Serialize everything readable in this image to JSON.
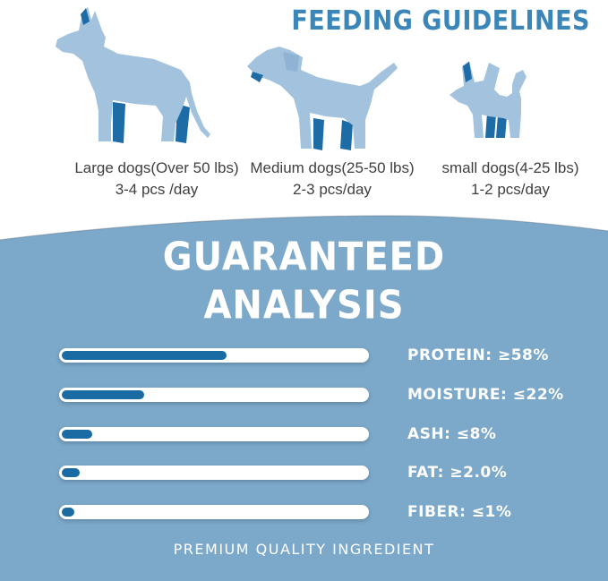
{
  "header": {
    "title": "FEEDING GUIDELINES"
  },
  "feeding_guide": {
    "dogs": [
      {
        "icon": "large-dog-icon",
        "label": "Large dogs(Over 50 lbs)",
        "amount": "3-4 pcs /day"
      },
      {
        "icon": "medium-dog-icon",
        "label": "Medium dogs(25-50 lbs)",
        "amount": "2-3 pcs/day"
      },
      {
        "icon": "small-dog-icon",
        "label": "small dogs(4-25 lbs)",
        "amount": "1-2 pcs/day"
      }
    ]
  },
  "analysis": {
    "title_line1": "GUARANTEED",
    "title_line2": "ANALYSIS",
    "nutrients": [
      {
        "label": "PROTEIN: ≥58%",
        "value_text": "≥58%",
        "bar_percent": 54
      },
      {
        "label": "MOISTURE: ≤22%",
        "value_text": "≤22%",
        "bar_percent": 27
      },
      {
        "label": "ASH: ≤8%",
        "value_text": "≤8%",
        "bar_percent": 10
      },
      {
        "label": "FAT: ≥2.0%",
        "value_text": "≥2.0%",
        "bar_percent": 6
      },
      {
        "label": "FIBER: ≤1%",
        "value_text": "≤1%",
        "bar_percent": 4
      }
    ],
    "footer": "PREMIUM QUALITY INGREDIENT"
  },
  "chart_data": {
    "type": "bar",
    "orientation": "horizontal",
    "title": "GUARANTEED ANALYSIS",
    "categories": [
      "PROTEIN",
      "MOISTURE",
      "ASH",
      "FAT",
      "FIBER"
    ],
    "values": [
      "≥58%",
      "≤22%",
      "≤8%",
      "≥2.0%",
      "≤1%"
    ],
    "bar_fill_fraction": [
      0.54,
      0.27,
      0.1,
      0.06,
      0.04
    ]
  },
  "colors": {
    "section_blue": "#7ca8c9",
    "bar_fill_blue": "#1a6aa3",
    "dog_light_blue": "#a3c2dd",
    "dog_dark_blue": "#1d6ca6",
    "heading_blue": "#3b86b8",
    "caption_text": "#3f3f3f",
    "white": "#ffffff"
  }
}
